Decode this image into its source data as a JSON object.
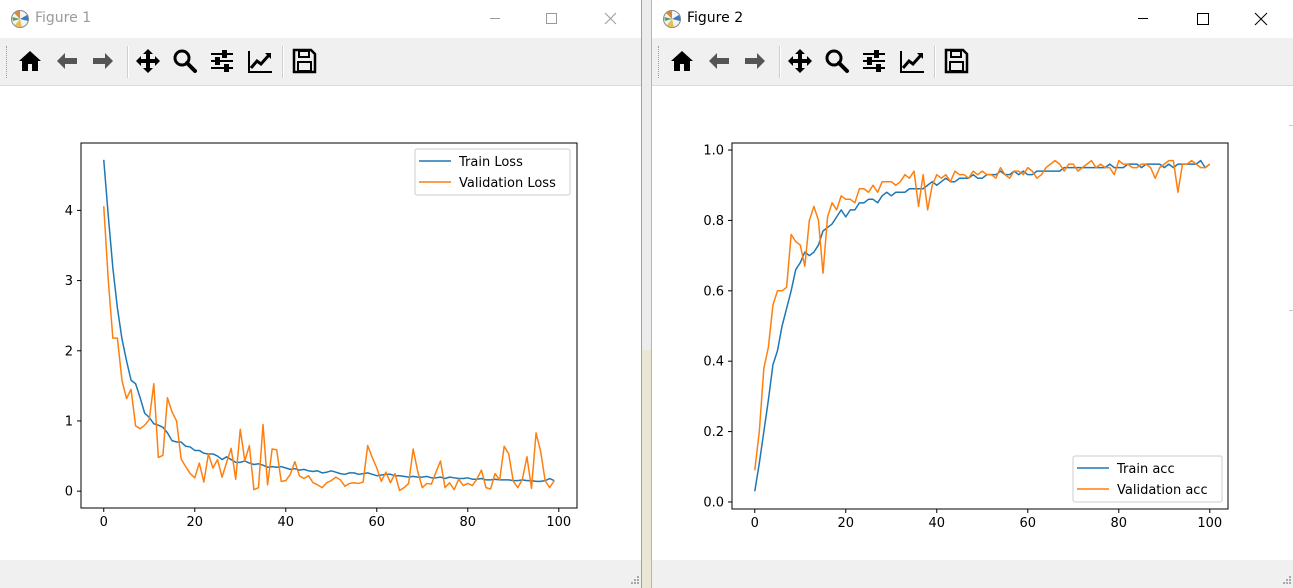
{
  "windows": [
    {
      "title": "Figure 1",
      "active": false,
      "chart_data": {
        "type": "line",
        "title": "",
        "xlabel": "",
        "ylabel": "",
        "xlim": [
          -5,
          104
        ],
        "ylim": [
          -0.24,
          4.96
        ],
        "xticks": [
          0,
          20,
          40,
          60,
          80,
          100
        ],
        "yticks": [
          0,
          1,
          2,
          3,
          4
        ],
        "legend": "upper-right",
        "series": [
          {
            "name": "Train Loss",
            "color": "#1f77b4",
            "values": [
              4.72,
              3.92,
              3.18,
              2.61,
              2.17,
              1.86,
              1.58,
              1.53,
              1.33,
              1.11,
              1.05,
              0.96,
              0.94,
              0.91,
              0.83,
              0.72,
              0.7,
              0.7,
              0.64,
              0.63,
              0.58,
              0.58,
              0.54,
              0.53,
              0.53,
              0.5,
              0.45,
              0.49,
              0.45,
              0.41,
              0.41,
              0.43,
              0.4,
              0.38,
              0.39,
              0.37,
              0.34,
              0.35,
              0.34,
              0.35,
              0.33,
              0.31,
              0.32,
              0.3,
              0.31,
              0.29,
              0.28,
              0.29,
              0.26,
              0.27,
              0.29,
              0.27,
              0.25,
              0.24,
              0.26,
              0.26,
              0.24,
              0.25,
              0.26,
              0.24,
              0.22,
              0.23,
              0.24,
              0.24,
              0.22,
              0.22,
              0.21,
              0.2,
              0.21,
              0.2,
              0.2,
              0.21,
              0.19,
              0.19,
              0.2,
              0.18,
              0.2,
              0.19,
              0.18,
              0.18,
              0.19,
              0.17,
              0.17,
              0.18,
              0.16,
              0.16,
              0.17,
              0.16,
              0.16,
              0.16,
              0.15,
              0.15,
              0.16,
              0.15,
              0.15,
              0.14,
              0.14,
              0.15,
              0.18,
              0.15
            ]
          },
          {
            "name": "Validation Loss",
            "color": "#ff7f0e",
            "values": [
              4.06,
              3.0,
              2.18,
              2.18,
              1.58,
              1.32,
              1.45,
              0.93,
              0.89,
              0.94,
              1.02,
              1.53,
              0.48,
              0.51,
              1.33,
              1.13,
              1.0,
              0.46,
              0.35,
              0.25,
              0.19,
              0.4,
              0.13,
              0.53,
              0.33,
              0.45,
              0.2,
              0.41,
              0.61,
              0.17,
              0.88,
              0.43,
              0.65,
              0.02,
              0.05,
              0.95,
              0.09,
              0.6,
              0.59,
              0.14,
              0.15,
              0.24,
              0.42,
              0.22,
              0.18,
              0.22,
              0.12,
              0.09,
              0.05,
              0.12,
              0.15,
              0.2,
              0.16,
              0.07,
              0.11,
              0.12,
              0.11,
              0.13,
              0.65,
              0.48,
              0.33,
              0.14,
              0.27,
              0.12,
              0.25,
              0.01,
              0.05,
              0.11,
              0.6,
              0.28,
              0.05,
              0.11,
              0.1,
              0.27,
              0.43,
              0.05,
              0.12,
              0.02,
              0.17,
              0.08,
              0.11,
              0.08,
              0.17,
              0.3,
              0.05,
              0.03,
              0.25,
              0.16,
              0.64,
              0.53,
              0.14,
              0.05,
              0.17,
              0.49,
              0.04,
              0.83,
              0.57,
              0.15,
              0.05,
              0.15
            ]
          }
        ]
      }
    },
    {
      "title": "Figure 2",
      "active": true,
      "chart_data": {
        "type": "line",
        "title": "",
        "xlabel": "",
        "ylabel": "",
        "xlim": [
          -5,
          104
        ],
        "ylim": [
          -0.02,
          1.02
        ],
        "xticks": [
          0,
          20,
          40,
          60,
          80,
          100
        ],
        "yticks": [
          0.0,
          0.2,
          0.4,
          0.6,
          0.8,
          1.0
        ],
        "legend": "lower-right",
        "series": [
          {
            "name": "Train acc",
            "color": "#1f77b4",
            "values": [
              0.03,
              0.11,
              0.2,
              0.29,
              0.39,
              0.43,
              0.5,
              0.55,
              0.6,
              0.66,
              0.68,
              0.71,
              0.7,
              0.71,
              0.73,
              0.77,
              0.78,
              0.79,
              0.81,
              0.83,
              0.81,
              0.83,
              0.83,
              0.85,
              0.85,
              0.86,
              0.86,
              0.85,
              0.87,
              0.88,
              0.87,
              0.88,
              0.88,
              0.88,
              0.89,
              0.89,
              0.89,
              0.89,
              0.9,
              0.91,
              0.9,
              0.91,
              0.92,
              0.91,
              0.91,
              0.92,
              0.92,
              0.92,
              0.93,
              0.92,
              0.92,
              0.93,
              0.93,
              0.93,
              0.94,
              0.93,
              0.93,
              0.94,
              0.93,
              0.94,
              0.93,
              0.93,
              0.94,
              0.94,
              0.94,
              0.94,
              0.94,
              0.94,
              0.95,
              0.95,
              0.95,
              0.95,
              0.95,
              0.95,
              0.95,
              0.95,
              0.95,
              0.95,
              0.96,
              0.95,
              0.95,
              0.95,
              0.96,
              0.96,
              0.96,
              0.95,
              0.96,
              0.96,
              0.96,
              0.96,
              0.95,
              0.96,
              0.95,
              0.96,
              0.96,
              0.96,
              0.96,
              0.96,
              0.97,
              0.95,
              0.96
            ]
          },
          {
            "name": "Validation acc",
            "color": "#ff7f0e",
            "values": [
              0.09,
              0.2,
              0.38,
              0.44,
              0.56,
              0.6,
              0.6,
              0.61,
              0.76,
              0.74,
              0.73,
              0.67,
              0.8,
              0.84,
              0.8,
              0.65,
              0.81,
              0.85,
              0.83,
              0.87,
              0.86,
              0.86,
              0.85,
              0.89,
              0.89,
              0.88,
              0.9,
              0.88,
              0.91,
              0.91,
              0.91,
              0.9,
              0.91,
              0.93,
              0.92,
              0.94,
              0.84,
              0.93,
              0.83,
              0.9,
              0.93,
              0.92,
              0.93,
              0.91,
              0.94,
              0.93,
              0.93,
              0.92,
              0.94,
              0.93,
              0.94,
              0.93,
              0.93,
              0.92,
              0.95,
              0.93,
              0.92,
              0.94,
              0.94,
              0.93,
              0.95,
              0.94,
              0.92,
              0.93,
              0.95,
              0.96,
              0.97,
              0.96,
              0.94,
              0.96,
              0.96,
              0.94,
              0.95,
              0.96,
              0.97,
              0.95,
              0.96,
              0.95,
              0.95,
              0.93,
              0.97,
              0.96,
              0.96,
              0.95,
              0.95,
              0.96,
              0.96,
              0.95,
              0.92,
              0.95,
              0.96,
              0.97,
              0.97,
              0.88,
              0.96,
              0.96,
              0.97,
              0.96,
              0.95,
              0.95,
              0.96
            ]
          }
        ]
      }
    }
  ],
  "toolbar_buttons": [
    "home-icon",
    "back-icon",
    "forward-icon",
    "pan-icon",
    "zoom-icon",
    "configure-subplots-icon",
    "edit-axis-icon",
    "save-icon"
  ],
  "colors": {
    "axis": "#000000",
    "toolbar_bg": "#f0f0f0"
  }
}
